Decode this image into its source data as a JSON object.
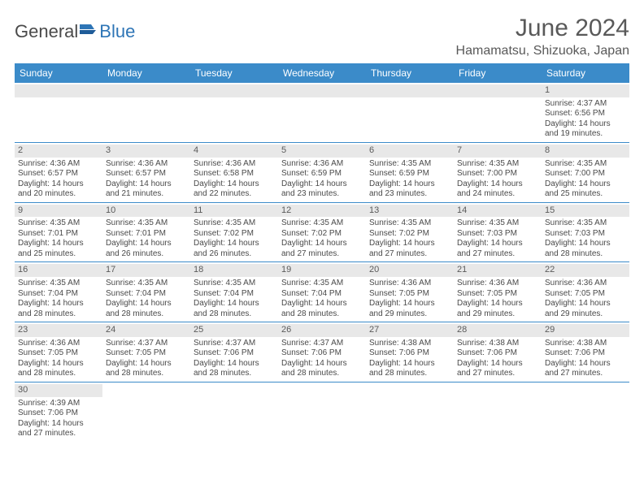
{
  "brand": {
    "part1": "General",
    "part2": "Blue"
  },
  "title": "June 2024",
  "location": "Hamamatsu, Shizuoka, Japan",
  "colors": {
    "header_bg": "#3b8bc9",
    "header_text": "#ffffff",
    "daynum_bg": "#e8e8e8",
    "border": "#3b8bc9",
    "brand_blue": "#2e75b6",
    "text": "#4a4a4a"
  },
  "weekdays": [
    "Sunday",
    "Monday",
    "Tuesday",
    "Wednesday",
    "Thursday",
    "Friday",
    "Saturday"
  ],
  "weeks": [
    [
      null,
      null,
      null,
      null,
      null,
      null,
      {
        "n": "1",
        "sr": "Sunrise: 4:37 AM",
        "ss": "Sunset: 6:56 PM",
        "d1": "Daylight: 14 hours",
        "d2": "and 19 minutes."
      }
    ],
    [
      {
        "n": "2",
        "sr": "Sunrise: 4:36 AM",
        "ss": "Sunset: 6:57 PM",
        "d1": "Daylight: 14 hours",
        "d2": "and 20 minutes."
      },
      {
        "n": "3",
        "sr": "Sunrise: 4:36 AM",
        "ss": "Sunset: 6:57 PM",
        "d1": "Daylight: 14 hours",
        "d2": "and 21 minutes."
      },
      {
        "n": "4",
        "sr": "Sunrise: 4:36 AM",
        "ss": "Sunset: 6:58 PM",
        "d1": "Daylight: 14 hours",
        "d2": "and 22 minutes."
      },
      {
        "n": "5",
        "sr": "Sunrise: 4:36 AM",
        "ss": "Sunset: 6:59 PM",
        "d1": "Daylight: 14 hours",
        "d2": "and 23 minutes."
      },
      {
        "n": "6",
        "sr": "Sunrise: 4:35 AM",
        "ss": "Sunset: 6:59 PM",
        "d1": "Daylight: 14 hours",
        "d2": "and 23 minutes."
      },
      {
        "n": "7",
        "sr": "Sunrise: 4:35 AM",
        "ss": "Sunset: 7:00 PM",
        "d1": "Daylight: 14 hours",
        "d2": "and 24 minutes."
      },
      {
        "n": "8",
        "sr": "Sunrise: 4:35 AM",
        "ss": "Sunset: 7:00 PM",
        "d1": "Daylight: 14 hours",
        "d2": "and 25 minutes."
      }
    ],
    [
      {
        "n": "9",
        "sr": "Sunrise: 4:35 AM",
        "ss": "Sunset: 7:01 PM",
        "d1": "Daylight: 14 hours",
        "d2": "and 25 minutes."
      },
      {
        "n": "10",
        "sr": "Sunrise: 4:35 AM",
        "ss": "Sunset: 7:01 PM",
        "d1": "Daylight: 14 hours",
        "d2": "and 26 minutes."
      },
      {
        "n": "11",
        "sr": "Sunrise: 4:35 AM",
        "ss": "Sunset: 7:02 PM",
        "d1": "Daylight: 14 hours",
        "d2": "and 26 minutes."
      },
      {
        "n": "12",
        "sr": "Sunrise: 4:35 AM",
        "ss": "Sunset: 7:02 PM",
        "d1": "Daylight: 14 hours",
        "d2": "and 27 minutes."
      },
      {
        "n": "13",
        "sr": "Sunrise: 4:35 AM",
        "ss": "Sunset: 7:02 PM",
        "d1": "Daylight: 14 hours",
        "d2": "and 27 minutes."
      },
      {
        "n": "14",
        "sr": "Sunrise: 4:35 AM",
        "ss": "Sunset: 7:03 PM",
        "d1": "Daylight: 14 hours",
        "d2": "and 27 minutes."
      },
      {
        "n": "15",
        "sr": "Sunrise: 4:35 AM",
        "ss": "Sunset: 7:03 PM",
        "d1": "Daylight: 14 hours",
        "d2": "and 28 minutes."
      }
    ],
    [
      {
        "n": "16",
        "sr": "Sunrise: 4:35 AM",
        "ss": "Sunset: 7:04 PM",
        "d1": "Daylight: 14 hours",
        "d2": "and 28 minutes."
      },
      {
        "n": "17",
        "sr": "Sunrise: 4:35 AM",
        "ss": "Sunset: 7:04 PM",
        "d1": "Daylight: 14 hours",
        "d2": "and 28 minutes."
      },
      {
        "n": "18",
        "sr": "Sunrise: 4:35 AM",
        "ss": "Sunset: 7:04 PM",
        "d1": "Daylight: 14 hours",
        "d2": "and 28 minutes."
      },
      {
        "n": "19",
        "sr": "Sunrise: 4:35 AM",
        "ss": "Sunset: 7:04 PM",
        "d1": "Daylight: 14 hours",
        "d2": "and 28 minutes."
      },
      {
        "n": "20",
        "sr": "Sunrise: 4:36 AM",
        "ss": "Sunset: 7:05 PM",
        "d1": "Daylight: 14 hours",
        "d2": "and 29 minutes."
      },
      {
        "n": "21",
        "sr": "Sunrise: 4:36 AM",
        "ss": "Sunset: 7:05 PM",
        "d1": "Daylight: 14 hours",
        "d2": "and 29 minutes."
      },
      {
        "n": "22",
        "sr": "Sunrise: 4:36 AM",
        "ss": "Sunset: 7:05 PM",
        "d1": "Daylight: 14 hours",
        "d2": "and 29 minutes."
      }
    ],
    [
      {
        "n": "23",
        "sr": "Sunrise: 4:36 AM",
        "ss": "Sunset: 7:05 PM",
        "d1": "Daylight: 14 hours",
        "d2": "and 28 minutes."
      },
      {
        "n": "24",
        "sr": "Sunrise: 4:37 AM",
        "ss": "Sunset: 7:05 PM",
        "d1": "Daylight: 14 hours",
        "d2": "and 28 minutes."
      },
      {
        "n": "25",
        "sr": "Sunrise: 4:37 AM",
        "ss": "Sunset: 7:06 PM",
        "d1": "Daylight: 14 hours",
        "d2": "and 28 minutes."
      },
      {
        "n": "26",
        "sr": "Sunrise: 4:37 AM",
        "ss": "Sunset: 7:06 PM",
        "d1": "Daylight: 14 hours",
        "d2": "and 28 minutes."
      },
      {
        "n": "27",
        "sr": "Sunrise: 4:38 AM",
        "ss": "Sunset: 7:06 PM",
        "d1": "Daylight: 14 hours",
        "d2": "and 28 minutes."
      },
      {
        "n": "28",
        "sr": "Sunrise: 4:38 AM",
        "ss": "Sunset: 7:06 PM",
        "d1": "Daylight: 14 hours",
        "d2": "and 27 minutes."
      },
      {
        "n": "29",
        "sr": "Sunrise: 4:38 AM",
        "ss": "Sunset: 7:06 PM",
        "d1": "Daylight: 14 hours",
        "d2": "and 27 minutes."
      }
    ],
    [
      {
        "n": "30",
        "sr": "Sunrise: 4:39 AM",
        "ss": "Sunset: 7:06 PM",
        "d1": "Daylight: 14 hours",
        "d2": "and 27 minutes."
      },
      null,
      null,
      null,
      null,
      null,
      null
    ]
  ]
}
